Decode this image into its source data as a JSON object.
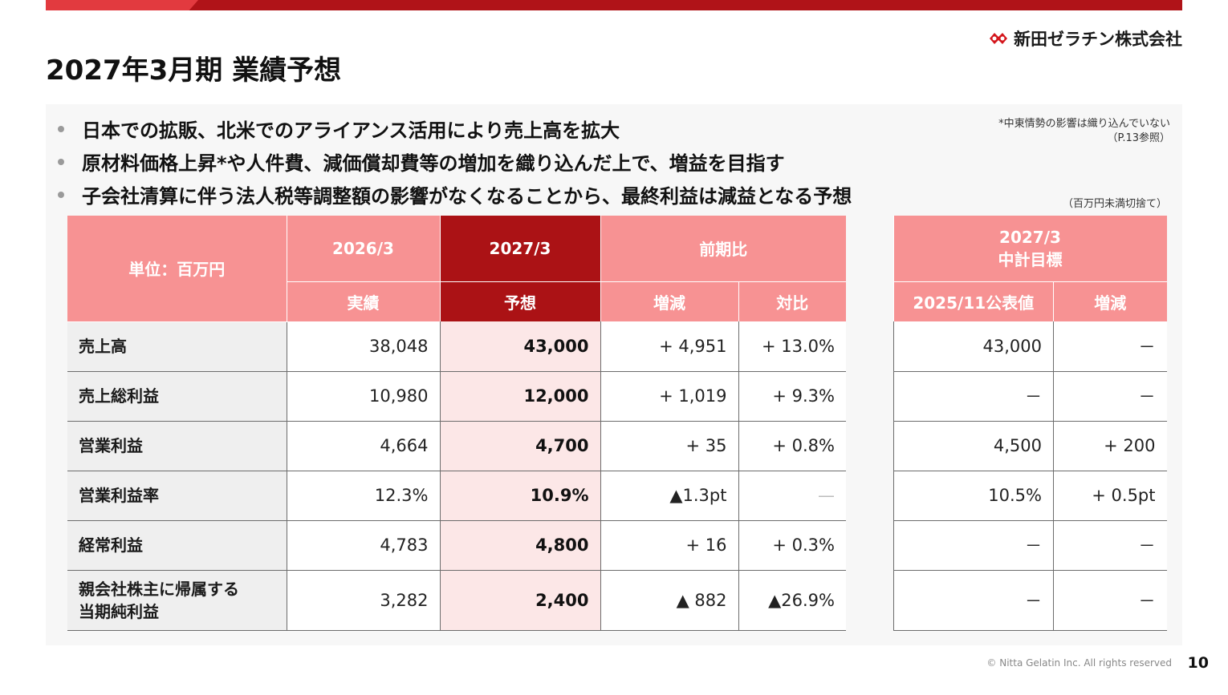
{
  "header": {
    "title": "2027年3月期 業績予想",
    "logo_text": "新田ゼラチン株式会社"
  },
  "bullets": [
    "日本での拡販、北米でのアライアンス活用により売上高を拡大",
    "原材料価格上昇*や人件費、減価償却費等の増加を織り込んだ上で、増益を目指す",
    "子会社清算に伴う法人税等調整額の影響がなくなることから、最終利益は減益となる予想"
  ],
  "notes": {
    "middle_east_line1": "*中東情勢の影響は織り込んでいない",
    "middle_east_line2": "（P.13参照）",
    "unit": "（百万円未満切捨て）"
  },
  "main_table": {
    "unit_label": "単位：百万円",
    "col_2026": "2026/3",
    "col_2027": "2027/3",
    "col_yoy": "前期比",
    "sub_actual": "実績",
    "sub_forecast": "予想",
    "sub_change": "増減",
    "sub_ratio": "対比",
    "rows": [
      {
        "label": "売上高",
        "actual": "38,048",
        "forecast": "43,000",
        "change": "+ 4,951",
        "ratio": "+ 13.0%"
      },
      {
        "label": "売上総利益",
        "actual": "10,980",
        "forecast": "12,000",
        "change": "+ 1,019",
        "ratio": "+ 9.3%"
      },
      {
        "label": "営業利益",
        "actual": "4,664",
        "forecast": "4,700",
        "change": "+ 35",
        "ratio": "+ 0.8%"
      },
      {
        "label": "営業利益率",
        "actual": "12.3%",
        "forecast": "10.9%",
        "change": "▲1.3pt",
        "ratio": "—"
      },
      {
        "label": "経常利益",
        "actual": "4,783",
        "forecast": "4,800",
        "change": "+ 16",
        "ratio": "+ 0.3%"
      },
      {
        "label_line1": "親会社株主に帰属する",
        "label_line2": "当期純利益",
        "actual": "3,282",
        "forecast": "2,400",
        "change": "▲ 882",
        "ratio": "▲26.9%"
      }
    ]
  },
  "side_table": {
    "title_line1": "2027/3",
    "title_line2": "中計目標",
    "sub_published": "2025/11公表値",
    "sub_change": "増減",
    "rows": [
      {
        "published": "43,000",
        "change": "－"
      },
      {
        "published": "－",
        "change": "－"
      },
      {
        "published": "4,500",
        "change": "+ 200"
      },
      {
        "published": "10.5%",
        "change": "+ 0.5pt"
      },
      {
        "published": "－",
        "change": "－"
      },
      {
        "published": "－",
        "change": "－"
      }
    ]
  },
  "footer": {
    "copyright": "© Nitta Gelatin Inc. All rights reserved",
    "page_number": "10"
  },
  "colors": {
    "brand_red": "#b01318",
    "header_pink": "#f79293",
    "forecast_fill": "#fce7e7"
  }
}
